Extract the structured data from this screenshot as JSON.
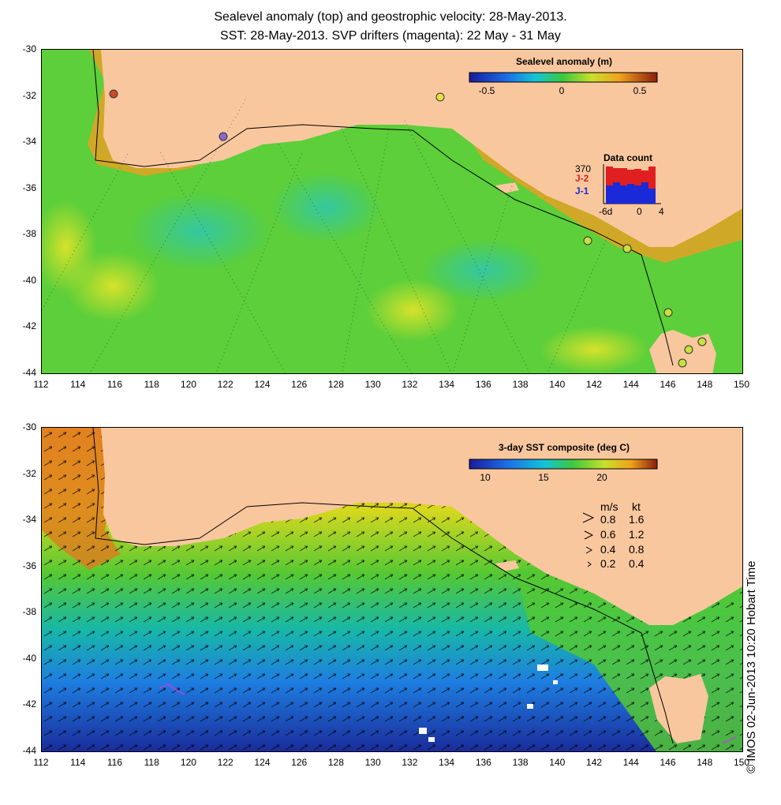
{
  "title_line1": "Sealevel anomaly (top) and geostrophic velocity: 28-May-2013.",
  "title_line2": "SST: 28-May-2013. SVP drifters (magenta): 22 May - 31 May",
  "x_ticks": [
    "112",
    "114",
    "116",
    "118",
    "120",
    "122",
    "124",
    "126",
    "128",
    "130",
    "132",
    "134",
    "136",
    "138",
    "140",
    "142",
    "144",
    "146",
    "148",
    "150"
  ],
  "y_ticks": [
    "-30",
    "-32",
    "-34",
    "-36",
    "-38",
    "-40",
    "-42",
    "-44"
  ],
  "top_colorbar": {
    "title": "Sealevel anomaly (m)",
    "ticks": [
      "-0.5",
      "0",
      "0.5"
    ]
  },
  "data_count": {
    "max": "370",
    "title": "Data count",
    "j2": "J-2",
    "j1": "J-1",
    "x_left": "-6d",
    "x_mid": "0",
    "x_right": "4"
  },
  "bottom_colorbar": {
    "title": "3-day SST composite (deg C)",
    "ticks": [
      "10",
      "15",
      "20"
    ]
  },
  "velocity_legend": {
    "header_ms": "m/s",
    "header_kt": "kt",
    "rows": [
      {
        "ms": "0.8",
        "kt": "1.6"
      },
      {
        "ms": "0.6",
        "kt": "1.2"
      },
      {
        "ms": "0.4",
        "kt": "0.8"
      },
      {
        "ms": "0.2",
        "kt": "0.4"
      }
    ]
  },
  "credit": "© IMOS 02-Jun-2013 10:20 Hobart Time",
  "colors": {
    "land": "#f9c79e",
    "ocean_green": "#5ccf3a"
  }
}
